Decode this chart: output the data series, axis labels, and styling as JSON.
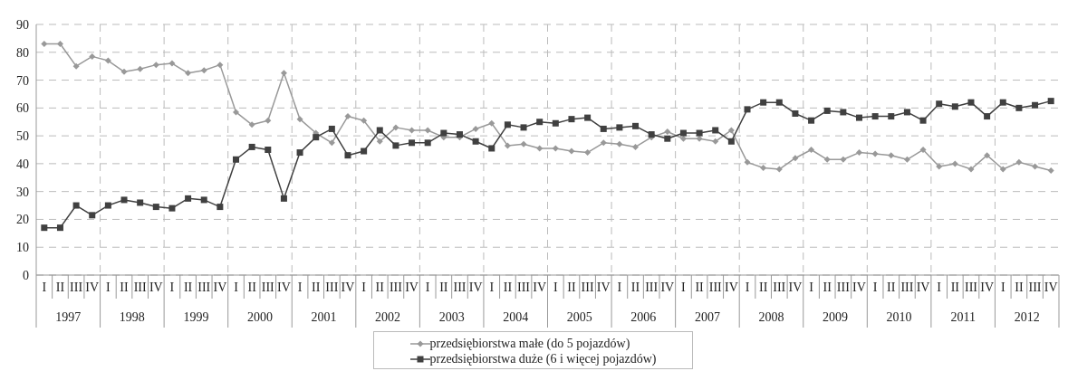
{
  "chart_data": {
    "type": "line",
    "categories": [
      "I",
      "II",
      "III",
      "IV",
      "I",
      "II",
      "III",
      "IV",
      "I",
      "II",
      "III",
      "IV",
      "I",
      "II",
      "III",
      "IV",
      "I",
      "II",
      "III",
      "IV",
      "I",
      "II",
      "III",
      "IV",
      "I",
      "II",
      "III",
      "IV",
      "I",
      "II",
      "III",
      "IV",
      "I",
      "II",
      "III",
      "IV",
      "I",
      "II",
      "III",
      "IV",
      "I",
      "II",
      "III",
      "IV",
      "I",
      "II",
      "III",
      "IV",
      "I",
      "II",
      "III",
      "IV",
      "I",
      "II",
      "III",
      "IV",
      "I",
      "II",
      "III",
      "IV",
      "I",
      "II",
      "III",
      "IV"
    ],
    "annotations": [
      "1997",
      "1998",
      "1999",
      "2000",
      "2001",
      "2002",
      "2003",
      "2004",
      "2005",
      "2006",
      "2007",
      "2008",
      "2009",
      "2010",
      "2011",
      "2012"
    ],
    "series": [
      {
        "name": "przedsiębiorstwa małe (do 5 pojazdów)",
        "color": "#999999",
        "marker": "diamond",
        "values": [
          83,
          83,
          75,
          78.5,
          77,
          73,
          74,
          75.5,
          76,
          72.5,
          73.5,
          75.5,
          58.5,
          54,
          55.5,
          72.5,
          56,
          51,
          47.5,
          57,
          55.5,
          48,
          53,
          52,
          52,
          49.5,
          49.5,
          52.5,
          54.5,
          46.5,
          47,
          45.5,
          45.5,
          44.5,
          44,
          47.5,
          47,
          46,
          49.5,
          51.5,
          49,
          49,
          48,
          52,
          40.5,
          38.5,
          38,
          42,
          45,
          41.5,
          41.5,
          44,
          43.5,
          43,
          41.5,
          45,
          39,
          40,
          38,
          43,
          38,
          40.5,
          39,
          37.5
        ]
      },
      {
        "name": "przedsiębiorstwa duże (6 i więcej pojazdów)",
        "color": "#404040",
        "marker": "square",
        "values": [
          17,
          17,
          25,
          21.5,
          25,
          27,
          26,
          24.5,
          24,
          27.5,
          27,
          24.5,
          41.5,
          46,
          45,
          27.5,
          44,
          49.5,
          52.5,
          43,
          44.5,
          52,
          46.5,
          47.5,
          47.5,
          51,
          50.5,
          48,
          45.5,
          54,
          53,
          55,
          54.5,
          56,
          56.5,
          52.5,
          53,
          53.5,
          50.5,
          49,
          51,
          51,
          52,
          48,
          59.5,
          62,
          62,
          58,
          55.5,
          59,
          58.5,
          56.5,
          57,
          57,
          58.5,
          55.5,
          61.5,
          60.5,
          62,
          57,
          62,
          60,
          61,
          62.5
        ]
      }
    ],
    "ylim": [
      0,
      90
    ],
    "yticks": [
      0,
      10,
      20,
      30,
      40,
      50,
      60,
      70,
      80,
      90
    ],
    "grid": true,
    "legend": "bottom",
    "line_style": "solid"
  }
}
